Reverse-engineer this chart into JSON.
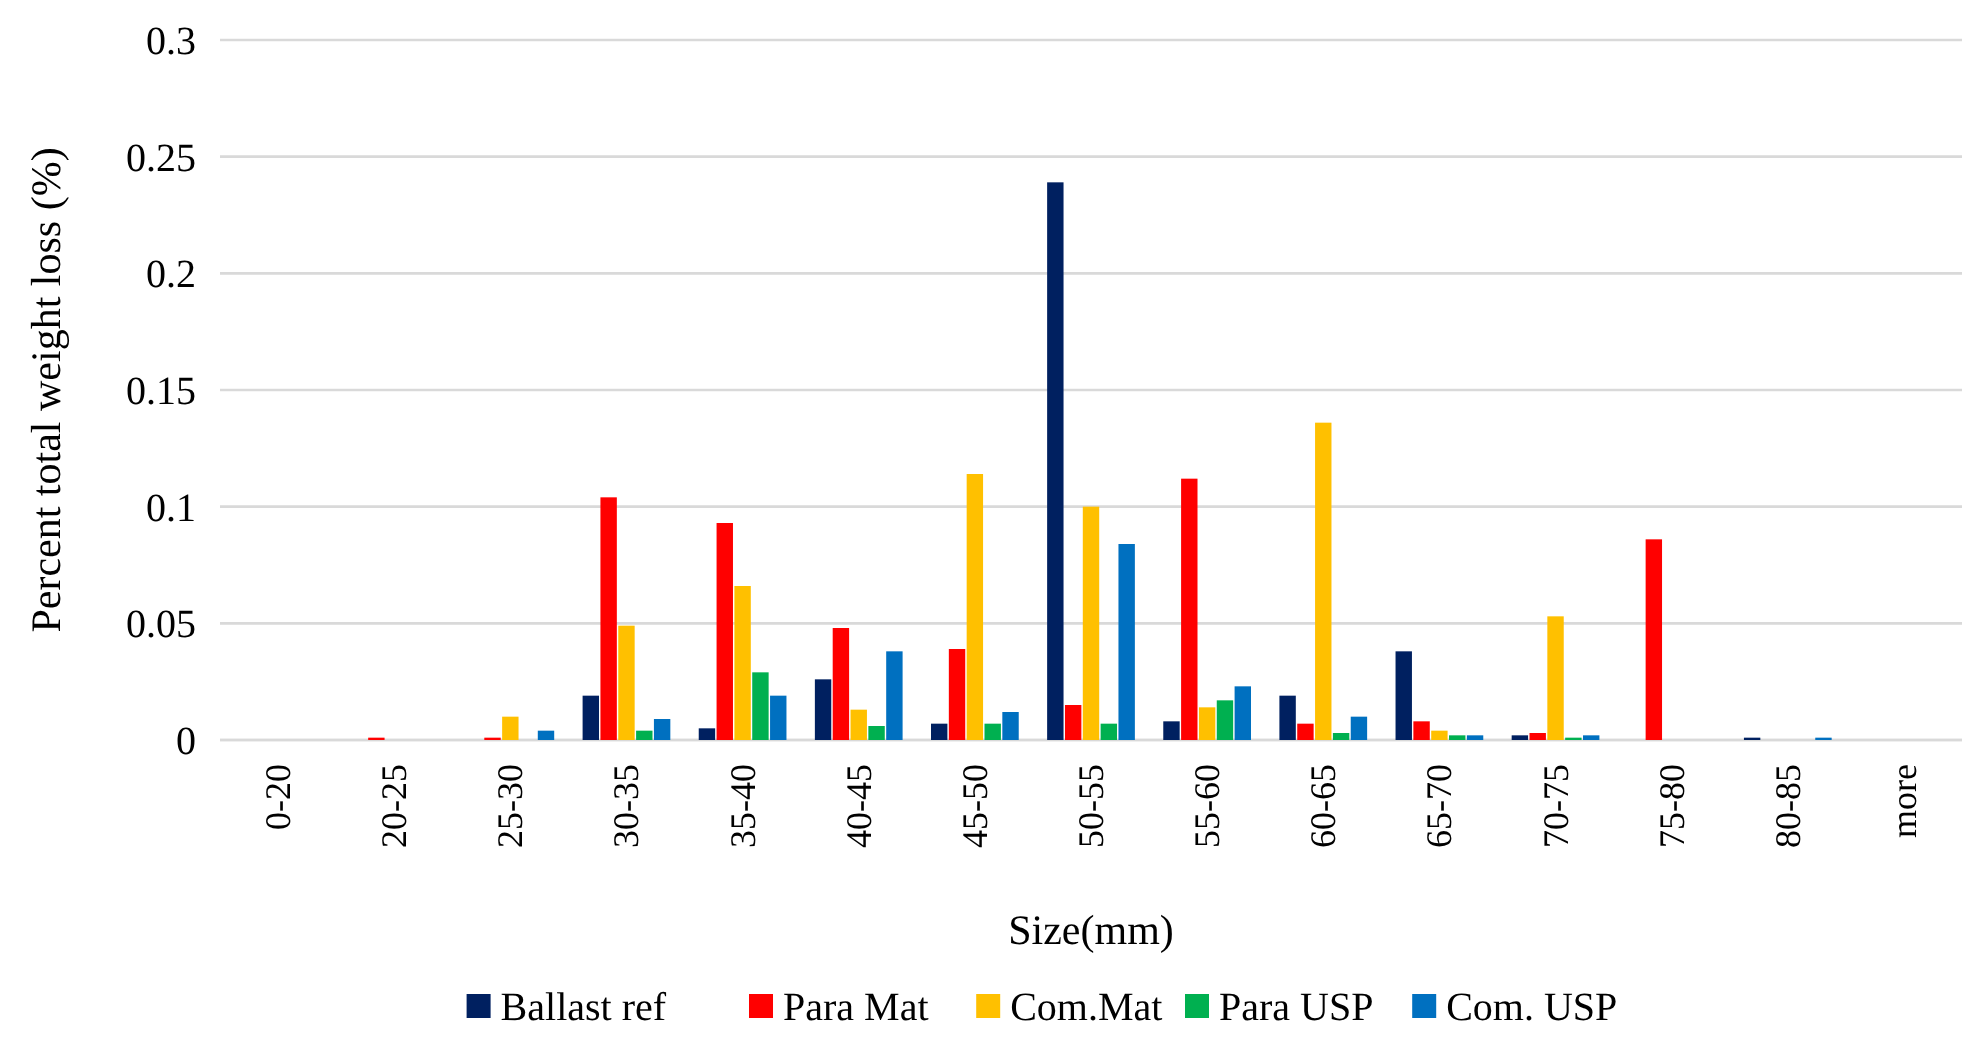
{
  "chart_data": {
    "type": "bar",
    "xlabel": "Size(mm)",
    "ylabel": "Percent total weight loss (%)",
    "categories": [
      "0-20",
      "20-25",
      "25-30",
      "30-35",
      "35-40",
      "40-45",
      "45-50",
      "50-55",
      "55-60",
      "60-65",
      "65-70",
      "70-75",
      "75-80",
      "80-85",
      "more"
    ],
    "series": [
      {
        "name": "Ballast ref",
        "color": "#002060",
        "values": [
          0,
          0,
          0,
          0.019,
          0.005,
          0.026,
          0.007,
          0.239,
          0.008,
          0.019,
          0.038,
          0.002,
          0,
          0.001,
          0
        ]
      },
      {
        "name": "Para Mat",
        "color": "#ff0000",
        "values": [
          0,
          0.001,
          0.001,
          0.104,
          0.093,
          0.048,
          0.039,
          0.015,
          0.112,
          0.007,
          0.008,
          0.003,
          0.086,
          0,
          0
        ]
      },
      {
        "name": "Com.Mat",
        "color": "#ffc000",
        "values": [
          0,
          0,
          0.01,
          0.049,
          0.066,
          0.013,
          0.114,
          0.1,
          0.014,
          0.136,
          0.004,
          0.053,
          0,
          0,
          0
        ]
      },
      {
        "name": "Para USP",
        "color": "#00b050",
        "values": [
          0,
          0,
          0,
          0.004,
          0.029,
          0.006,
          0.007,
          0.007,
          0.017,
          0.003,
          0.002,
          0.001,
          0,
          0,
          0
        ]
      },
      {
        "name": "Com. USP",
        "color": "#0070c0",
        "values": [
          0,
          0,
          0.004,
          0.009,
          0.019,
          0.038,
          0.012,
          0.084,
          0.023,
          0.01,
          0.002,
          0.002,
          0,
          0.001,
          0
        ]
      }
    ],
    "ylim": [
      0,
      0.3
    ],
    "yticks": [
      0,
      0.05,
      0.1,
      0.15,
      0.2,
      0.25,
      0.3
    ],
    "grid": "y",
    "legend": "bottom"
  }
}
